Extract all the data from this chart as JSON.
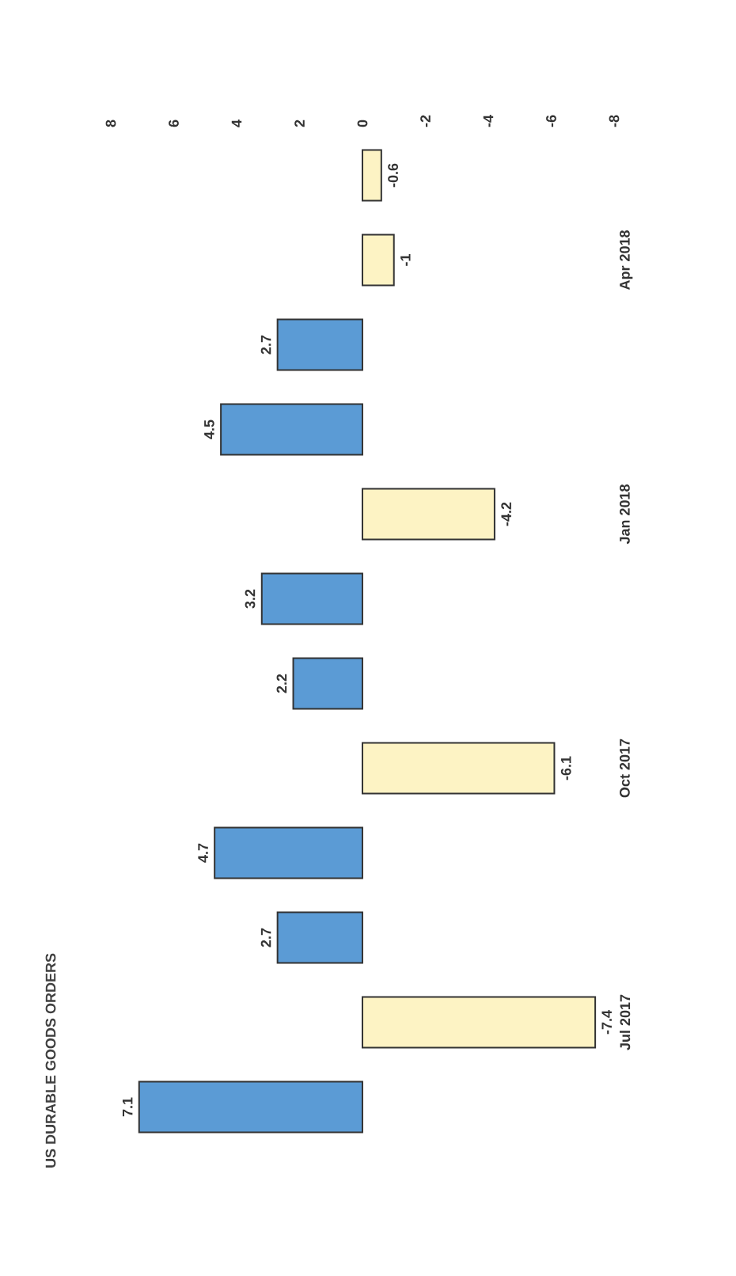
{
  "chart_data": {
    "type": "bar",
    "orientation": "horizontal",
    "title": "US DURABLE GOODS ORDERS",
    "categories": [
      null,
      "Apr 2018",
      null,
      null,
      "Jan 2018",
      null,
      null,
      "Oct 2017",
      null,
      null,
      "Jul 2017",
      null
    ],
    "values": [
      -0.6,
      -1,
      2.7,
      4.5,
      -4.2,
      3.2,
      2.2,
      -6.1,
      4.7,
      2.7,
      -7.4,
      7.1
    ],
    "colors": [
      "#fdf3c4",
      "#fdf3c4",
      "#5b9bd5",
      "#5b9bd5",
      "#fdf3c4",
      "#5b9bd5",
      "#5b9bd5",
      "#fdf3c4",
      "#5b9bd5",
      "#5b9bd5",
      "#fdf3c4",
      "#5b9bd5"
    ],
    "xlim": [
      8,
      -8
    ],
    "xticks": [
      8,
      6,
      4,
      2,
      0,
      -2,
      -4,
      -6,
      -8
    ],
    "data_labels": true
  }
}
